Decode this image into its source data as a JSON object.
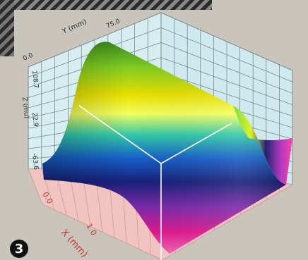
{
  "figure": {
    "number": "3"
  },
  "plot": {
    "y_axis_label": "Y (mm)",
    "y_tick_1": "75.0",
    "y_tick_0": "0.0",
    "z_axis_label": "Z (mu)",
    "z_ticks": [
      "108.7",
      "22.9",
      "-63.6"
    ],
    "x_axis_label": "X (mm)",
    "x_ticks": [
      "0.0",
      "1.0"
    ],
    "colors": {
      "floor": "#f2c4c0",
      "back_wall": "#d6eef0",
      "side_wall": "#c8e6ec",
      "grid": "#7c8a8c",
      "floor_grid": "#c79d9a",
      "axis_text_dark": "#2a2a2a",
      "axis_text_red": "#c0392b"
    }
  }
}
